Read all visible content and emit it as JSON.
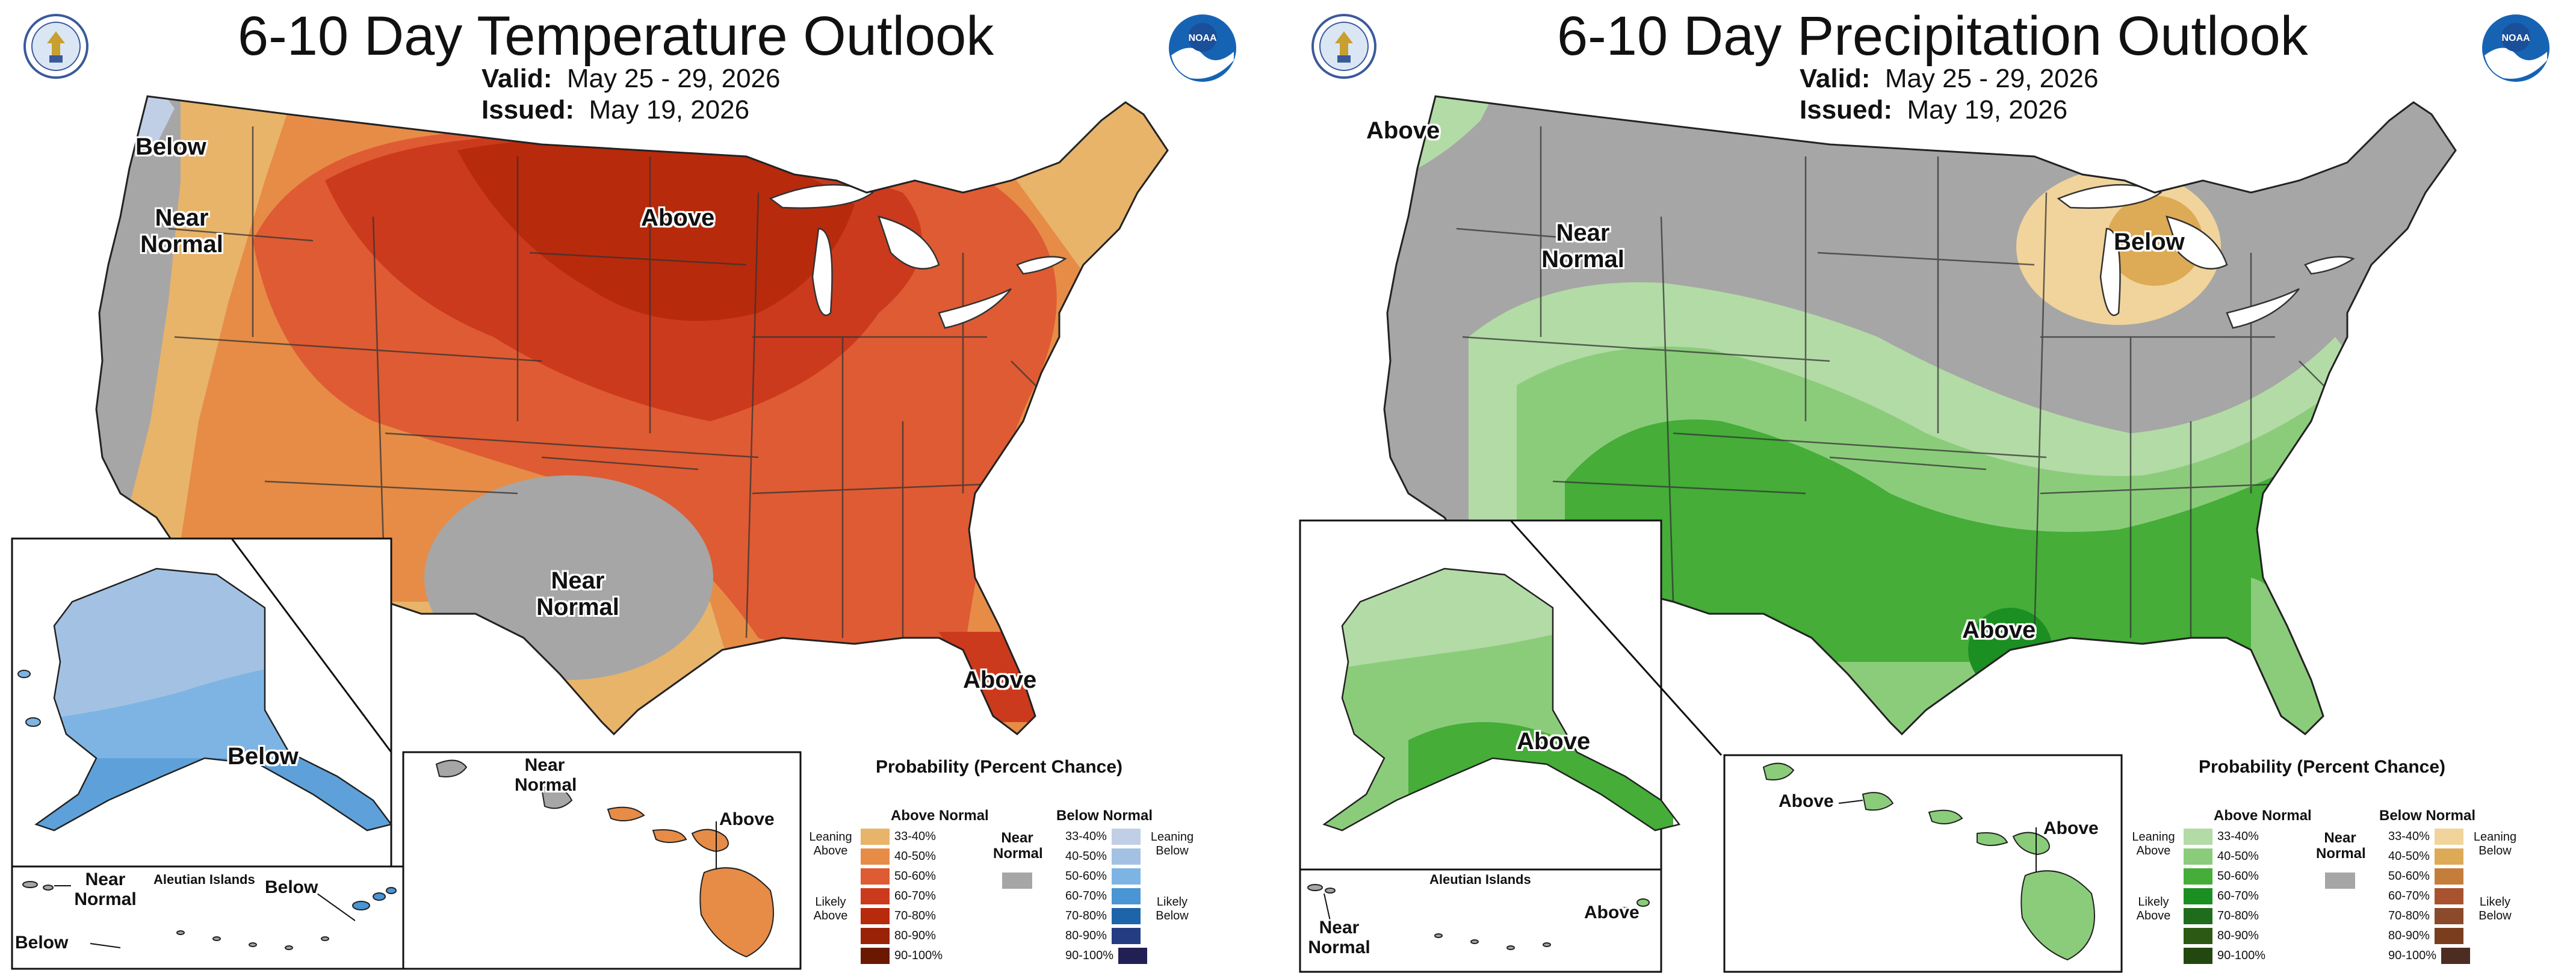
{
  "temperature": {
    "title": "6-10 Day Temperature Outlook",
    "valid_label": "Valid:",
    "valid_value": "May 25 - 29, 2026",
    "issued_label": "Issued:",
    "issued_value": "May 19, 2026",
    "labels": {
      "below_nw": "Below",
      "near_normal_west": "Near Normal",
      "above_north": "Above",
      "near_normal_texas": "Near Normal",
      "above_florida": "Above",
      "alaska_below": "Below",
      "aleutian_near_normal": "Near Normal",
      "aleutian_islands": "Aleutian Islands",
      "aleutian_below_east": "Below",
      "aleutian_below_west": "Below",
      "hawaii_near_normal": "Near Normal",
      "hawaii_above": "Above"
    }
  },
  "precipitation": {
    "title": "6-10 Day Precipitation Outlook",
    "valid_label": "Valid:",
    "valid_value": "May 25 - 29, 2026",
    "issued_label": "Issued:",
    "issued_value": "May 19, 2026",
    "labels": {
      "above_nw": "Above",
      "near_normal_west": "Near Normal",
      "below_lakes": "Below",
      "above_gulf": "Above",
      "alaska_above": "Above",
      "aleutian_islands": "Aleutian Islands",
      "aleutian_above": "Above",
      "aleutian_near_normal": "Near Normal",
      "hawaii_above_west": "Above",
      "hawaii_above_east": "Above"
    }
  },
  "legend_common": {
    "title": "Probability (Percent Chance)",
    "above_normal": "Above Normal",
    "below_normal": "Below Normal",
    "near_normal": "Near Normal",
    "leaning_above": "Leaning Above",
    "likely_above": "Likely Above",
    "leaning_below": "Leaning Below",
    "likely_below": "Likely Below",
    "bins": [
      "33-40%",
      "40-50%",
      "50-60%",
      "60-70%",
      "70-80%",
      "80-90%",
      "90-100%"
    ],
    "near_normal_color": "#a6a6a6"
  },
  "colors": {
    "temp_above": [
      "#e8b46a",
      "#e68c47",
      "#df5b33",
      "#cc3a1d",
      "#b82a0c",
      "#9a2206",
      "#6b1803"
    ],
    "temp_below": [
      "#c1cfe6",
      "#a3c2e3",
      "#7db4e3",
      "#4a95d3",
      "#1e64ab",
      "#243c82",
      "#221f55"
    ],
    "precip_above": [
      "#b3dba6",
      "#8bcc7b",
      "#45ad38",
      "#1c8f23",
      "#1f6d1c",
      "#2c5a14",
      "#23480f"
    ],
    "precip_below": [
      "#f1d49b",
      "#ddaa55",
      "#c57d3c",
      "#a8522f",
      "#8b4a2b",
      "#7a3e1e",
      "#4d2c22"
    ]
  }
}
